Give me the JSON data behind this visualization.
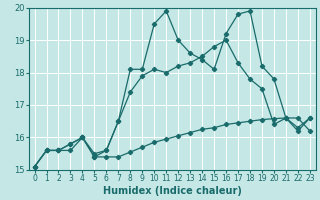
{
  "xlabel": "Humidex (Indice chaleur)",
  "background_color": "#c5e8e6",
  "line_color": "#1a6b6b",
  "grid_color": "#ffffff",
  "xlim": [
    -0.5,
    23.5
  ],
  "ylim": [
    15,
    20
  ],
  "xticks": [
    0,
    1,
    2,
    3,
    4,
    5,
    6,
    7,
    8,
    9,
    10,
    11,
    12,
    13,
    14,
    15,
    16,
    17,
    18,
    19,
    20,
    21,
    22,
    23
  ],
  "yticks": [
    15,
    16,
    17,
    18,
    19,
    20
  ],
  "series": [
    [
      15.1,
      15.6,
      15.6,
      15.6,
      16.0,
      15.4,
      15.4,
      15.4,
      15.55,
      15.7,
      15.85,
      15.95,
      16.05,
      16.15,
      16.25,
      16.3,
      16.4,
      16.45,
      16.5,
      16.55,
      16.58,
      16.6,
      16.6,
      16.2
    ],
    [
      15.1,
      15.6,
      15.6,
      15.8,
      16.0,
      15.4,
      15.6,
      16.5,
      18.1,
      18.1,
      19.5,
      19.9,
      19.0,
      18.6,
      18.4,
      18.1,
      19.2,
      19.8,
      19.9,
      18.2,
      17.8,
      16.6,
      16.2,
      16.6
    ],
    [
      15.1,
      15.6,
      15.6,
      15.8,
      16.0,
      15.5,
      15.6,
      16.5,
      17.4,
      17.9,
      18.1,
      18.0,
      18.2,
      18.3,
      18.5,
      18.8,
      19.0,
      18.3,
      17.8,
      17.5,
      16.4,
      16.6,
      16.3,
      16.6
    ]
  ]
}
